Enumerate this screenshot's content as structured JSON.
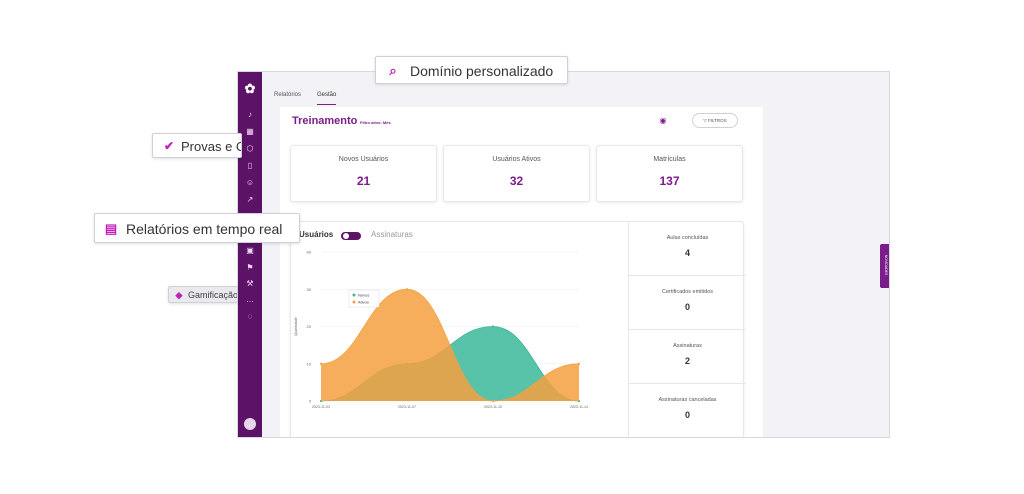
{
  "tabs": {
    "relatorios": "Relatórios",
    "gestao": "Gestão"
  },
  "header": {
    "title": "Treinamento",
    "filter_tag": "Filtro ativo: Mês",
    "filtros_button": "FILTROS"
  },
  "stats": [
    {
      "label": "Novos Usuários",
      "value": "21"
    },
    {
      "label": "Usuários Ativos",
      "value": "32"
    },
    {
      "label": "Matrículas",
      "value": "137"
    }
  ],
  "chart_header": {
    "usuarios": "Usuários",
    "assinaturas": "Assinaturas"
  },
  "side_stats": [
    {
      "label": "Aulas concluídas",
      "value": "4"
    },
    {
      "label": "Certificados emitidos",
      "value": "0"
    },
    {
      "label": "Assinaturas",
      "value": "2"
    },
    {
      "label": "Assinaturas canceladas",
      "value": "0"
    }
  ],
  "novidades": "NOVIDADES",
  "callouts": {
    "dominio": "Domínio personalizado",
    "provas": "Provas e C",
    "relatorios": "Relatórios em tempo real",
    "gamificacao": "Gamificação"
  },
  "icons": {
    "sidebar": [
      "bell-icon",
      "grid-icon",
      "box-icon",
      "book-icon",
      "users-icon",
      "trend-icon",
      "globe-icon",
      "id-icon",
      "calendar-icon",
      "flag-icon",
      "hammer-icon",
      "more-icon",
      "whatsapp-icon"
    ]
  },
  "colors": {
    "brand": "#7a1c8a",
    "sidebar": "#5c1266",
    "novos": "#3cb89a",
    "ativos": "#f5a040",
    "callout_icon": "#c41fb8"
  },
  "chart_data": {
    "type": "area",
    "x": [
      "2023-11-03",
      "2023-11-07",
      "2023-11-10",
      "2023-11-14"
    ],
    "ylabel": "Quantidade",
    "ylim": [
      0,
      40
    ],
    "yticks": [
      0,
      10,
      20,
      30,
      40
    ],
    "legend": "top-left",
    "series": [
      {
        "name": "Novos",
        "color": "#3cb89a",
        "values": [
          0,
          10,
          20,
          0
        ]
      },
      {
        "name": "Ativos",
        "color": "#f5a040",
        "values": [
          10,
          30,
          0,
          10
        ]
      }
    ]
  }
}
